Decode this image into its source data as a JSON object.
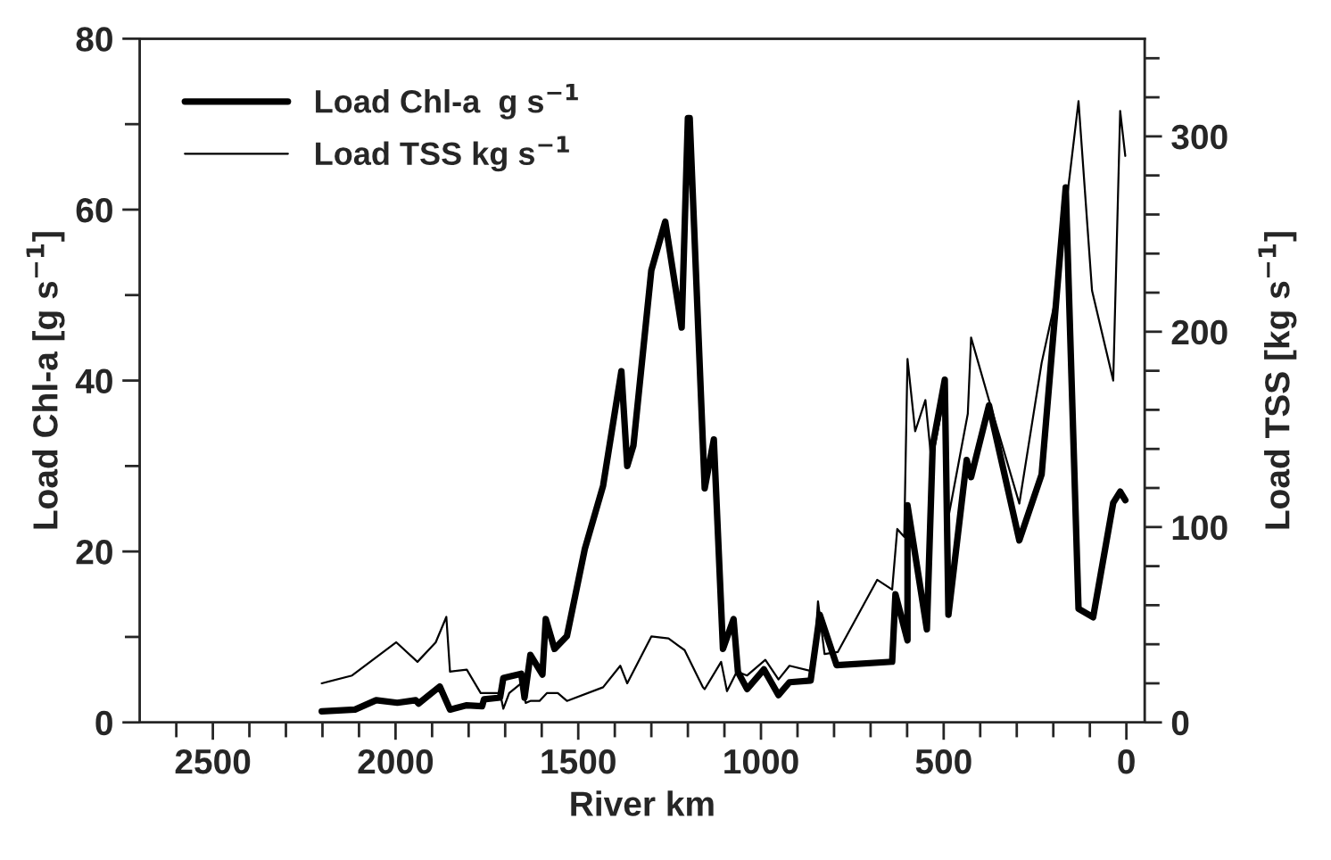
{
  "chart_data": {
    "type": "line",
    "xlabel": "River km",
    "ylabel": "Load Chl-a [g s$^{−1}$]",
    "y2label": "Load TSS [kg s$^{−1}$]",
    "xlim": [
      2700,
      -50
    ],
    "ylim": [
      0,
      80
    ],
    "y2lim": [
      0,
      350
    ],
    "xticks": [
      {
        "value": 2600,
        "label": null
      },
      2500,
      {
        "value": 2400,
        "label": null
      },
      {
        "value": 2300,
        "label": null
      },
      {
        "value": 2200,
        "label": null
      },
      {
        "value": 2100,
        "label": null
      },
      2000,
      {
        "value": 1900,
        "label": null
      },
      {
        "value": 1800,
        "label": null
      },
      {
        "value": 1700,
        "label": null
      },
      {
        "value": 1600,
        "label": null
      },
      1500,
      {
        "value": 1400,
        "label": null
      },
      {
        "value": 1300,
        "label": null
      },
      {
        "value": 1200,
        "label": null
      },
      {
        "value": 1100,
        "label": null
      },
      1000,
      {
        "value": 900,
        "label": null
      },
      {
        "value": 800,
        "label": null
      },
      {
        "value": 700,
        "label": null
      },
      {
        "value": 600,
        "label": null
      },
      500,
      {
        "value": 400,
        "label": null
      },
      {
        "value": 300,
        "label": null
      },
      {
        "value": 200,
        "label": null
      },
      {
        "value": 100,
        "label": null
      },
      0
    ],
    "yticks": [
      0,
      {
        "value": 10,
        "label": null
      },
      20,
      {
        "value": 30,
        "label": null
      },
      40,
      {
        "value": 50,
        "label": null
      },
      60,
      {
        "value": 70,
        "label": null
      },
      80
    ],
    "y2ticks": [
      0,
      {
        "value": 20,
        "label": null
      },
      {
        "value": 40,
        "label": null
      },
      {
        "value": 60,
        "label": null
      },
      {
        "value": 80,
        "label": null
      },
      100,
      {
        "value": 120,
        "label": null
      },
      {
        "value": 140,
        "label": null
      },
      {
        "value": 160,
        "label": null
      },
      {
        "value": 180,
        "label": null
      },
      200,
      {
        "value": 220,
        "label": null
      },
      {
        "value": 240,
        "label": null
      },
      {
        "value": 260,
        "label": null
      },
      {
        "value": 280,
        "label": null
      },
      300,
      {
        "value": 320,
        "label": null
      },
      {
        "value": 340,
        "label": null
      }
    ],
    "grid": false,
    "legend": "top left",
    "marker": "none",
    "series": [
      {
        "name": "Load Chl-a  g s$^{−1}$",
        "color": "#000000",
        "x": [
          2202,
          2111,
          2053,
          1995,
          1945,
          1937,
          1879,
          1851,
          1805,
          1763,
          1758,
          1714,
          1705,
          1656,
          1647,
          1631,
          1598,
          1589,
          1565,
          1531,
          1482,
          1432,
          1382,
          1366,
          1349,
          1300,
          1262,
          1217,
          1200,
          1195,
          1154,
          1129,
          1104,
          1075,
          1063,
          1038,
          992,
          952,
          922,
          864,
          839,
          793,
          641,
          632,
          599,
          599,
          546,
          530,
          497,
          487,
          437,
          425,
          376,
          293,
          232,
          166,
          131,
          91,
          36,
          17,
          3
        ],
        "values": [
          1.3,
          1.5,
          2.6,
          2.3,
          2.6,
          2.2,
          4.2,
          1.5,
          2.0,
          1.9,
          2.7,
          2.9,
          5.2,
          5.7,
          2.9,
          7.9,
          5.6,
          12.1,
          8.6,
          10.1,
          20.3,
          27.7,
          41.1,
          30.0,
          32.4,
          52.9,
          58.6,
          46.2,
          70.7,
          70.7,
          27.4,
          33.1,
          8.6,
          12.1,
          5.9,
          3.9,
          6.2,
          3.2,
          4.7,
          4.9,
          12.6,
          6.7,
          7.1,
          15.0,
          9.6,
          25.4,
          10.9,
          32.4,
          40.1,
          12.6,
          30.7,
          28.7,
          37.1,
          21.3,
          29.0,
          62.6,
          13.3,
          12.3,
          25.7,
          27.0,
          26.0
        ]
      },
      {
        "name": "Load TSS kg s$^{−1}$",
        "color": "#000000",
        "axis": "y2",
        "x": [
          2202,
          2119,
          1998,
          1940,
          1890,
          1861,
          1851,
          1805,
          1767,
          1714,
          1705,
          1689,
          1656,
          1644,
          1631,
          1606,
          1586,
          1556,
          1531,
          1432,
          1385,
          1366,
          1300,
          1253,
          1209,
          1159,
          1154,
          1109,
          1093,
          1066,
          1038,
          988,
          952,
          922,
          856,
          844,
          826,
          790,
          682,
          641,
          627,
          608,
          599,
          578,
          550,
          533,
          495,
          487,
          434,
          425,
          376,
          293,
          232,
          197,
          131,
          94,
          36,
          17,
          3
        ],
        "values": [
          20,
          24,
          41,
          31,
          41,
          54,
          26,
          27,
          15,
          15,
          7,
          15,
          20,
          10,
          11,
          11,
          15,
          15,
          11,
          18,
          29,
          20,
          44,
          43,
          37,
          18,
          17,
          31,
          16,
          26,
          24,
          32,
          22,
          29,
          26,
          62,
          35,
          36,
          73,
          68,
          99,
          95,
          186,
          149,
          165,
          133,
          170,
          105,
          158,
          197,
          165,
          112,
          184,
          214,
          318,
          221,
          175,
          313,
          290
        ]
      }
    ]
  }
}
